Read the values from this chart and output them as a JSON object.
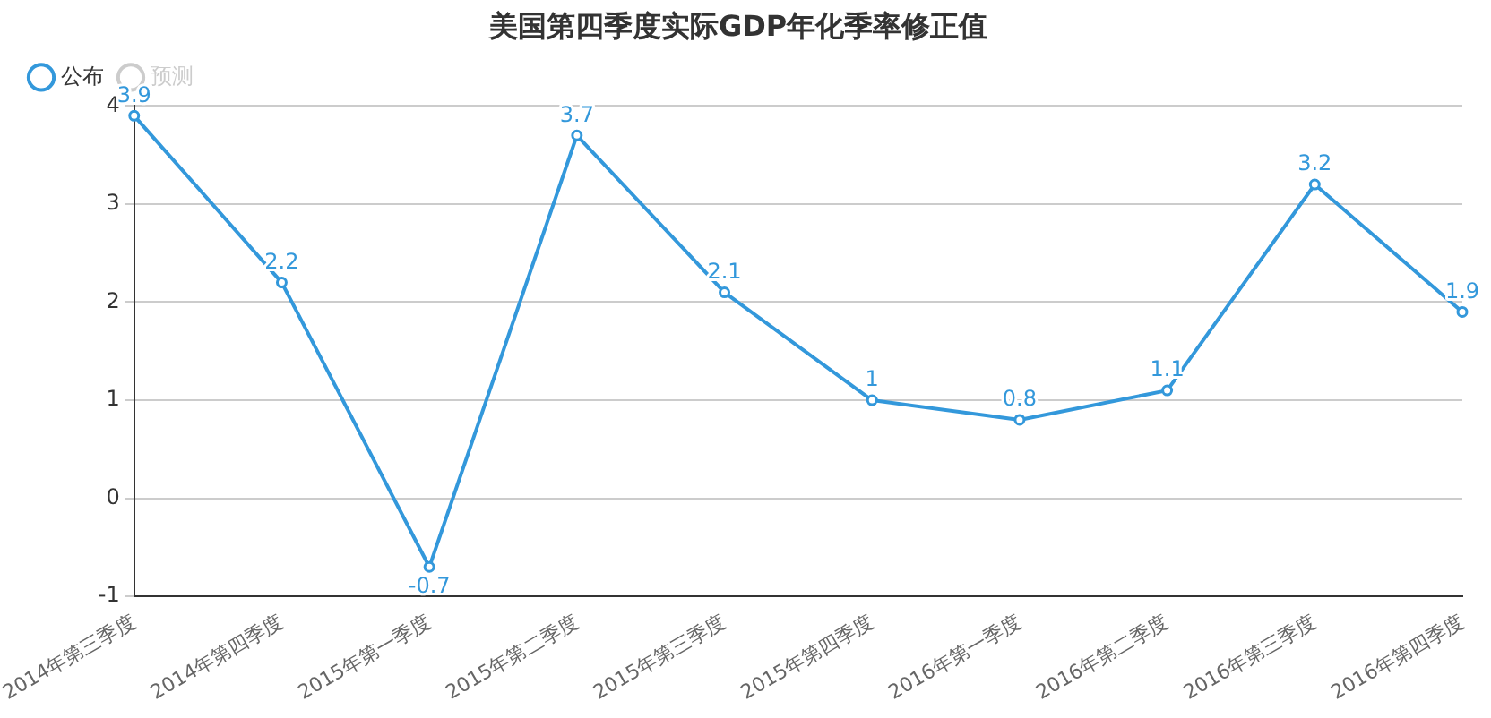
{
  "chart_data": {
    "type": "line",
    "title": "美国第四季度实际GDP年化季率修正值",
    "categories": [
      "2014年第三季度",
      "2014年第四季度",
      "2015年第一季度",
      "2015年第二季度",
      "2015年第三季度",
      "2015年第四季度",
      "2016年第一季度",
      "2016年第二季度",
      "2016年第三季度",
      "2016年第四季度"
    ],
    "series": [
      {
        "name": "公布",
        "color": "#3398db",
        "values": [
          3.9,
          2.2,
          -0.7,
          3.7,
          2.1,
          1,
          0.8,
          1.1,
          3.2,
          1.9
        ]
      },
      {
        "name": "预测",
        "color": "#cccccc",
        "values": [
          null,
          null,
          null,
          null,
          null,
          null,
          null,
          null,
          null,
          null
        ]
      }
    ],
    "ylim": [
      -1,
      4
    ],
    "yticks": [
      -1,
      0,
      1,
      2,
      3,
      4
    ],
    "grid": "y",
    "legend": "top left",
    "marker": "circle",
    "line_style": "solid",
    "data_labels": true
  }
}
